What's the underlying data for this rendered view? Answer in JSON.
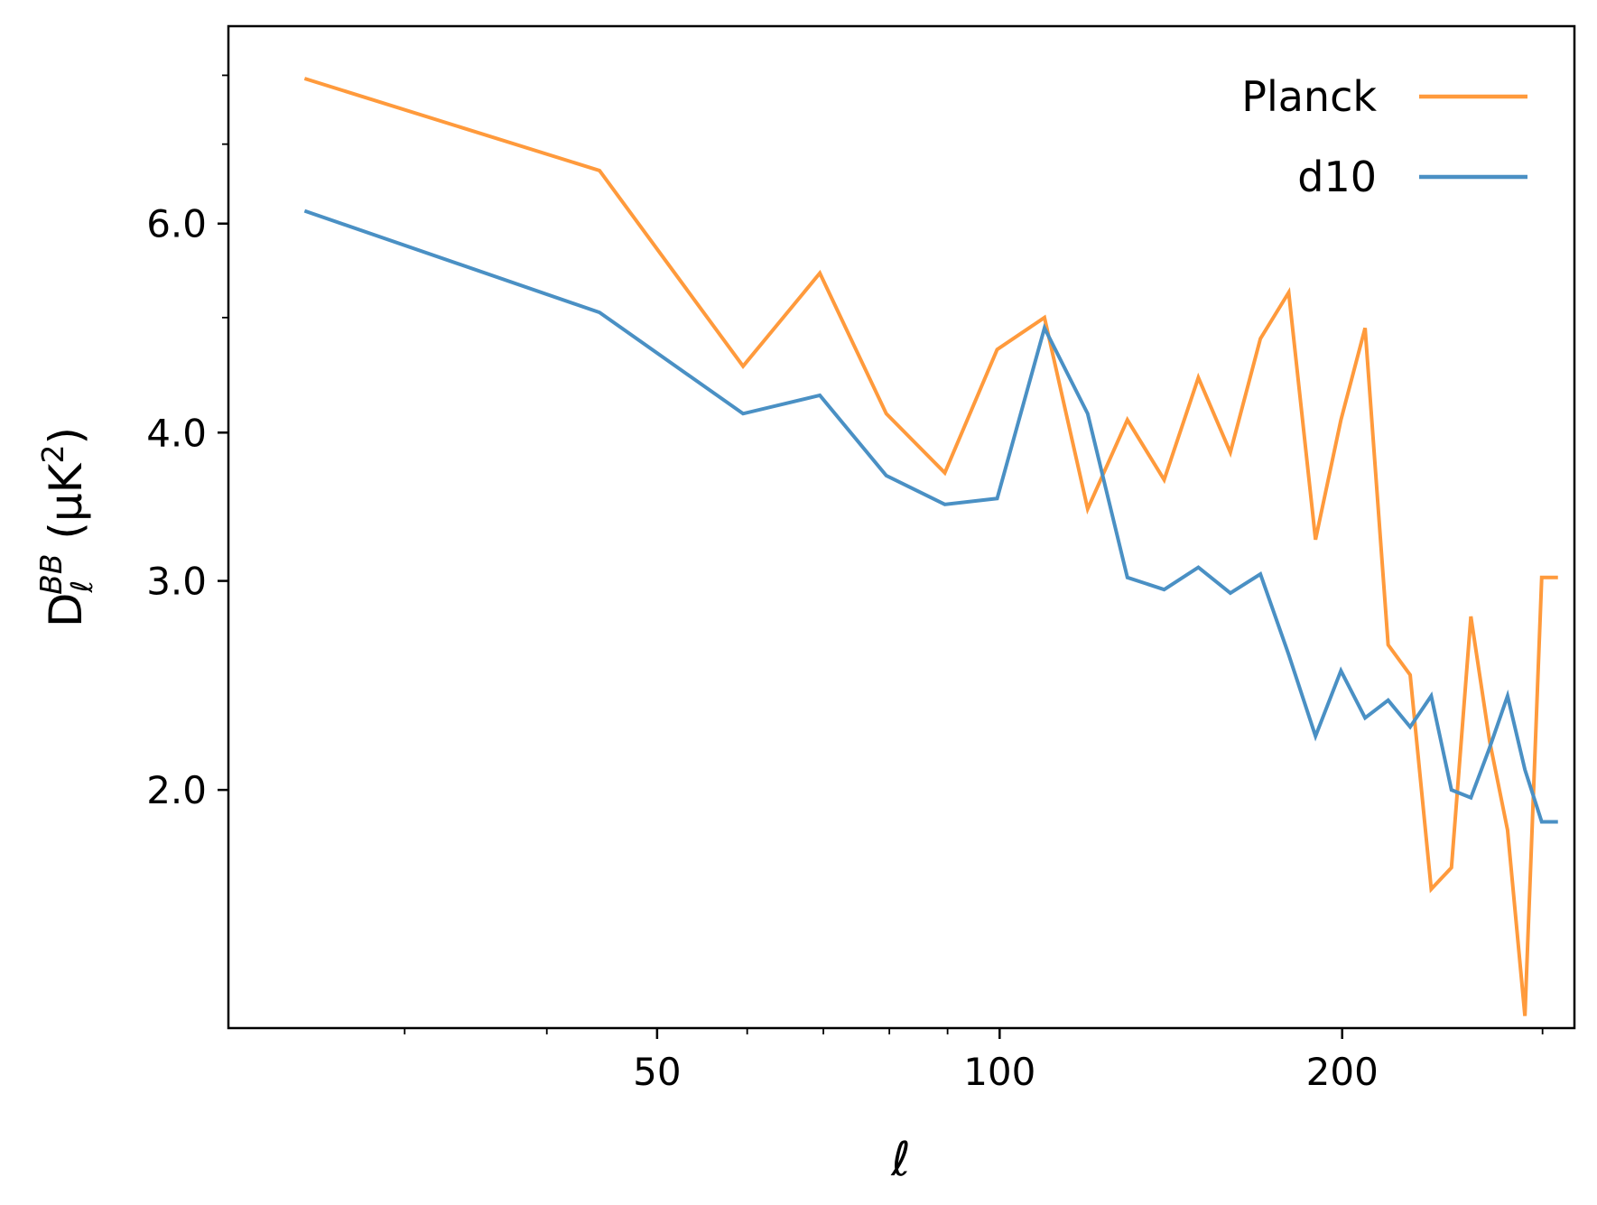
{
  "chart_data": {
    "type": "line",
    "xscale": "log",
    "yscale": "log",
    "xlim": [
      21,
      320
    ],
    "ylim": [
      1.26,
      8.8
    ],
    "xticks": [
      50,
      100,
      200
    ],
    "xtick_labels": [
      "50",
      "100",
      "200"
    ],
    "yticks": [
      2.0,
      3.0,
      4.0,
      6.0
    ],
    "ytick_labels": [
      "2.0",
      "3.0",
      "4.0",
      "6.0"
    ],
    "xlabel": "ℓ",
    "ylabel": {
      "main": "D",
      "sup": "BB",
      "sub": "ℓ",
      "unit": " (μK",
      "unit_sup": "2",
      "unit_close": ")"
    },
    "legend_position": "upper-right",
    "grid": false,
    "series": [
      {
        "name": "Planck",
        "color": "#ff9a3c",
        "x": [
          24.5,
          44.5,
          59.5,
          69.5,
          79.5,
          89.5,
          99.5,
          109.5,
          119.5,
          129.5,
          139.5,
          149.5,
          159.5,
          169.5,
          179.5,
          189.5,
          199.5,
          209.5,
          219.5,
          229.5,
          239.5,
          249.5,
          259.5,
          269.5,
          279.5,
          289.5,
          299.5,
          309.5
        ],
        "y": [
          7.95,
          6.65,
          4.55,
          5.45,
          4.15,
          3.7,
          4.7,
          5.0,
          3.45,
          4.1,
          3.65,
          4.45,
          3.85,
          4.8,
          5.25,
          3.25,
          4.1,
          4.9,
          2.65,
          2.5,
          1.65,
          1.72,
          2.8,
          2.2,
          1.85,
          1.29,
          3.02,
          3.02
        ]
      },
      {
        "name": "d10",
        "color": "#4a90c4",
        "x": [
          24.5,
          44.5,
          59.5,
          69.5,
          79.5,
          89.5,
          99.5,
          109.5,
          119.5,
          129.5,
          139.5,
          149.5,
          159.5,
          169.5,
          179.5,
          189.5,
          199.5,
          209.5,
          219.5,
          229.5,
          239.5,
          249.5,
          259.5,
          269.5,
          279.5,
          289.5,
          299.5,
          309.5
        ],
        "y": [
          6.15,
          5.05,
          4.15,
          4.3,
          3.68,
          3.48,
          3.52,
          4.9,
          4.15,
          3.02,
          2.95,
          3.08,
          2.93,
          3.04,
          2.6,
          2.22,
          2.52,
          2.3,
          2.38,
          2.26,
          2.4,
          2.0,
          1.97,
          2.17,
          2.4,
          2.08,
          1.88,
          1.88
        ]
      }
    ]
  }
}
